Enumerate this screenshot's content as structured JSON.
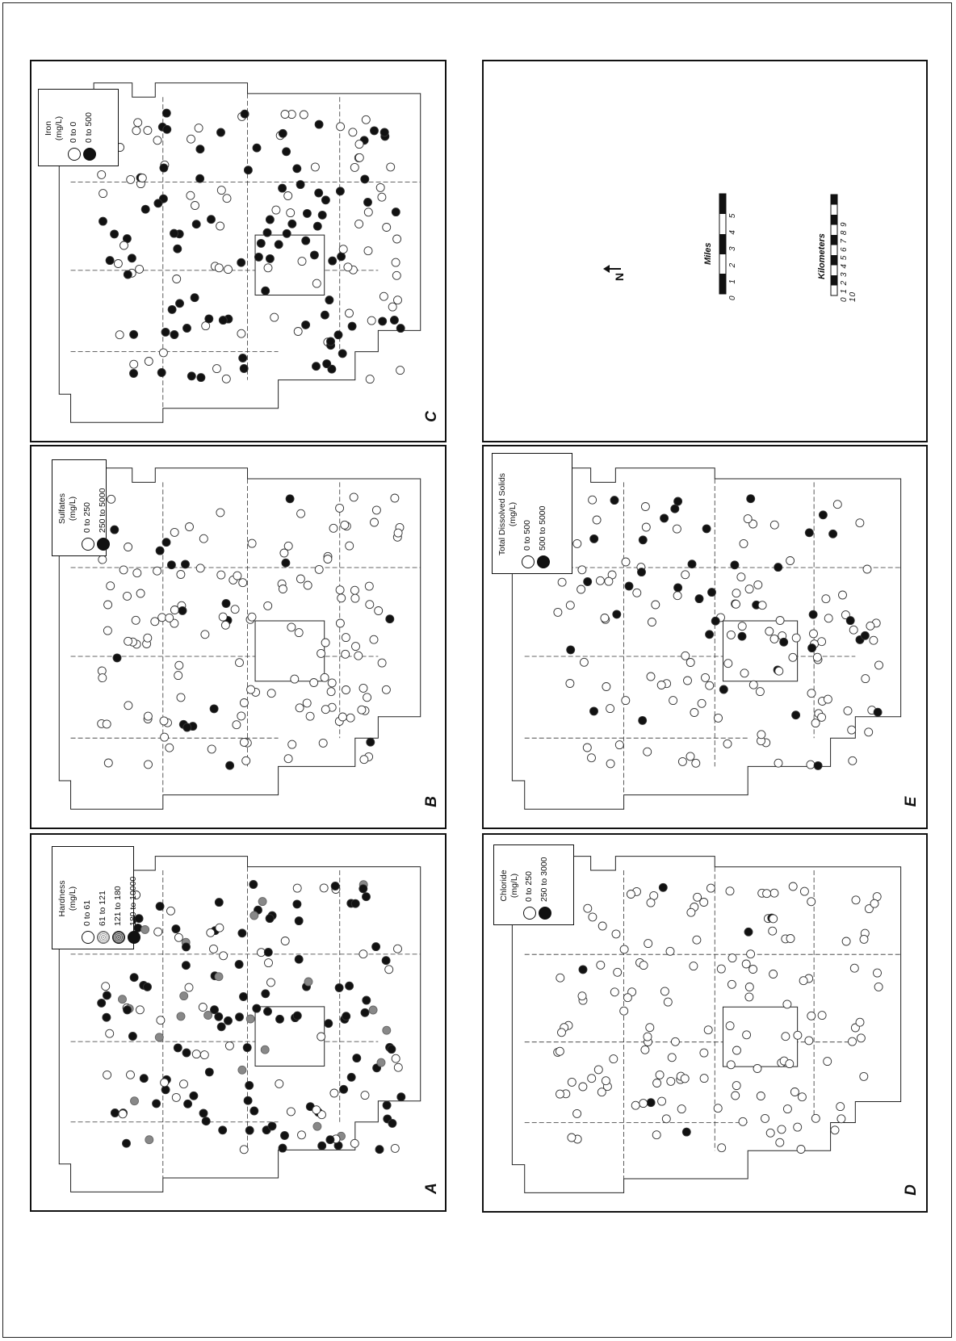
{
  "figure": {
    "panels": [
      {
        "id": "A",
        "letter": "A",
        "legend": {
          "title": "Hardness",
          "unit": "(mg/L)",
          "classes": [
            {
              "label": "0  to  61",
              "symbol": "open"
            },
            {
              "label": "61  to  121",
              "symbol": "light"
            },
            {
              "label": "121  to  180",
              "symbol": "med"
            },
            {
              "label": "180  to  10000",
              "symbol": "filled"
            }
          ]
        }
      },
      {
        "id": "B",
        "letter": "B",
        "legend": {
          "title": "Sulfates",
          "unit": "(mg/L)",
          "classes": [
            {
              "label": "0  to  250",
              "symbol": "open"
            },
            {
              "label": "250  to  5000",
              "symbol": "filled"
            }
          ]
        }
      },
      {
        "id": "C",
        "letter": "C",
        "legend": {
          "title": "Iron",
          "unit": "(mg/L)",
          "classes": [
            {
              "label": "0  to  0",
              "symbol": "open"
            },
            {
              "label": "0  to  500",
              "symbol": "filled"
            }
          ]
        }
      },
      {
        "id": "D",
        "letter": "D",
        "legend": {
          "title": "Chloride",
          "unit": "(mg/L)",
          "classes": [
            {
              "label": "0  to  250",
              "symbol": "open"
            },
            {
              "label": "250  to  3000",
              "symbol": "filled"
            }
          ]
        }
      },
      {
        "id": "E",
        "letter": "E",
        "legend": {
          "title": "Total Dissolved Solids",
          "unit": "(mg/L)",
          "classes": [
            {
              "label": "0  to  500",
              "symbol": "open"
            },
            {
              "label": "500  to  5000",
              "symbol": "filled"
            }
          ]
        }
      }
    ],
    "key_panel": {
      "north_label": "N",
      "miles_label": "Miles",
      "miles_ticks": "0  1  2  3  4  5",
      "km_label": "Kilometers",
      "km_ticks": "0 1 2 3 4 5 6 7 8 9 10"
    },
    "well_counts": {
      "A": 170,
      "B": 150,
      "C": 165,
      "D": 150,
      "E": 150
    },
    "filled_fraction": {
      "A": 0.62,
      "B": 0.12,
      "C": 0.55,
      "D": 0.03,
      "E": 0.28
    }
  }
}
